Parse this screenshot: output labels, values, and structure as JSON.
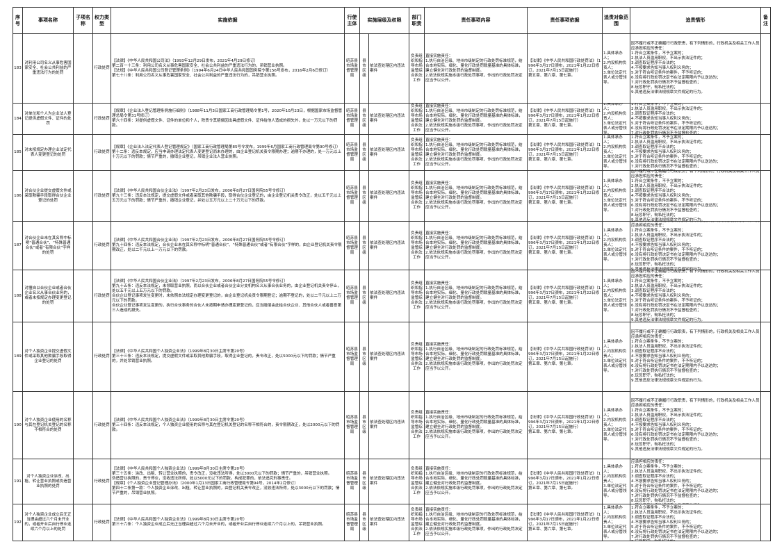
{
  "table": {
    "headers": [
      "序号",
      "事项名称",
      "子项名称",
      "权力类型",
      "实施依据",
      "行使主体",
      "实施层级及权限",
      "部门职责",
      "责任事项内容",
      "责任事项依据",
      "追责对象范围",
      "追责情形",
      "备注"
    ],
    "shared": {
      "subject": "昭苏县市场监督管理局",
      "level": "县市区级",
      "scope": "依法查处辖区内违法案件",
      "duty": "负责组织和指导市场监管综合执法工作",
      "content": "直接实施责任：\n1.执行自治区级、地州市级制定的行政处罚标准规范，结合本地实际，细化、量化行政处罚裁量基准的具体标准，建立健全对行政处罚的监督制度。\n2.依法依规实施本级行政处罚事项，作出的行政处罚决定应当予以公开。",
      "content_basis": "【法律】《中华人民共和国行政处罚法》（1996年3月17日颁布，2021年1月22日修订，2021年7月15日起施行）\n第五章、第六章、第七章。",
      "targets": "1.具体承办人；\n2.内设机构负责人；\n3.单位法定代表人或分管领导。",
      "situations": "因不履行或不正确履行行政职责，有下列情形的，行政机关及相关工作人员应承担相应的责任：\n1.符合立案条件，不予立案的；\n2.执法人员滥用职权，不出示执法证件的；\n3.调查取证程序不合法的；\n4.不按要求告知当事人权利义务的；\n5.对于符合听证条件的案件，不予听证的；\n6.没有将行政处罚决定书在法定期限内予以送达的；\n7.对行政处罚执行情况不予监督检查的；\n8.玩忽职守，徇私枉法的；\n9.其他违反法律法规规章文件规定的行为。"
    },
    "rows": [
      {
        "no": "183",
        "name": "对利用公司名义从事危害国家安全、社会公共利益的严重违法行为的处罚",
        "type": "行政处罚",
        "basis": "【法律】《中华人民共和国公司法》（1993年12月29日发布，2021年4月29日修订）\n第二百一十三条：利用公司名义从事危害国家安全、社会公共利益的严重违法行为的，吊销营业执照。\n【法规】《中华人民共和国公司登记管理条例》（1994年6月24日中华人民共和国国务院令第156号发布，2016年2月6日修订）\n第七十八条：利用公司名义从事危害国家安全、社会公共利益的严重违法行为的，吊销营业执照。"
      },
      {
        "no": "184",
        "name": "对单位和个人为企业法人登记提供虚假文件、证件的处罚",
        "type": "行政处罚",
        "basis": "【规章】《企业法人登记管理条例施行细则》（1988年11月3日国家工商行政管理局令第1号，2020年10月23日，根据国家市场监督管理总局令第31号修订）\n第六十四条：对提供虚假文件、证件的单位和个人，除责令其赔偿因出具虚假文件、证件给他人造成的损失外，处以一万元以下的罚款。"
      },
      {
        "no": "185",
        "name": "对未按规定办理企业法定代表人变更登记的处罚",
        "type": "行政处罚",
        "basis": "【规章】《企业法人法定代表人登记管理规定》（国家工商行政管理局第85号令发布，1999年6月国家工商行政管理局令第90号修订）\n第十二条：违反本规定，应当申请办理法定代表人变更登记而未办理的，由企业登记机关责令限期办理；逾期不办理的，处一万元以上十万元以下的罚款；情节严重的，撤销企业登记，吊销企业法人营业执照。"
      },
      {
        "no": "186",
        "name": "对合伙企业提交虚假文件或采取欺骗手段取得合伙企业登记的处罚",
        "type": "行政处罚",
        "basis": "【法律】《中华人民共和国合伙企业法》（1997年2月23日发布，2006年8月27日国务院55号令修订）\n第九十三条：违反本法规定，提交虚假文件或者采取其他欺骗手段，取得合伙企业登记的，由企业登记机关责令改正，处以五千元以上五万元以下的罚款；情节严重的，撤销企业登记，并处以五万元以上二十万元以下的罚款。"
      },
      {
        "no": "187",
        "name": "对合伙企业未在其名称中标明“普通合伙”、“特殊普通合伙”或者“有限合伙”字样的处罚",
        "type": "行政处罚",
        "basis": "【法律】《中华人民共和国合伙企业法》（1997年2月23日发布，2006年8月27日国务院55号令修订）\n第九十四条：违反本法规定，合伙企业未在其名称中标明“普通合伙”、“特殊普通合伙”或者“有限合伙”字样的，由企业登记机关责令限期改正，处以二千元以上一万元以下的罚款。"
      },
      {
        "no": "188",
        "name": "对擅自以合伙企业或者合伙企业名义从事合伙业务的，或者未按规定办理变更登记的处罚",
        "type": "行政处罚",
        "basis": "【法律】《中华人民共和国合伙企业法》（1997年2月23日发布，2006年8月27日国务院55号令修订）\n第九十五条：违反本法规定，未领取营业执照，而以合伙企业或者合伙企业分支机构名义从事合伙业务的，由企业登记机关责令停止，处以五千元以上五万元以下的罚款。\n合伙企业登记事项发生变更时，未依照本法规定办理变更登记的，由企业登记机关责令限期登记；逾期不登记的，处以二千元以上二万元以下的罚款。\n合伙企业登记事项发生变更的，执行合伙事务的合伙人未按期申请办理变更登记的，应当赔偿由此给合伙企业、其他合伙人或者善意第三人造成的损失。"
      },
      {
        "no": "189",
        "name": "对个人独资企业提交虚假文件或采取其他欺骗手段取得企业登记的处罚",
        "type": "行政处罚",
        "basis": "【法律】《中华人民共和国个人独资企业法》（1999年8月30日主席令第20号）\n第三十三条：违反本法规定，提交虚假文件或采取其他欺骗手段，取得企业登记的，责令改正，处以5000元以下的罚款；情节严重的，并处吊销营业执照。"
      },
      {
        "no": "190",
        "name": "对个人独资企业使用的名称与其在登记机关登记的名称不相符合的处罚",
        "type": "行政处罚",
        "basis": "【法律】《中华人民共和国个人独资企业法》（1999年8月30日主席令第20号）\n第三十四条：违反本法规定，个人独资企业使用的名称与其在登记机关登记的名称不相符合的，责令限期改正，处以2000元以下的罚款。"
      },
      {
        "no": "191",
        "name": "对个人独资企业涂改、出租、转让营业执照或伪造营业执照的处罚",
        "type": "行政处罚",
        "basis": "【法律】《中华人民共和国个人独资企业法》（1999年8月30日主席令第20号）\n第三十五条：涂改、出租、转让营业执照的，责令改正，没收违法所得，处以3000元以下的罚款；情节严重的，吊销营业执照。\n伪造营业执照的，责令停业，没收违法所得，处以5000元以下的罚款。构成犯罪的，依法追究刑事责任。\n【规章】《个人独资企业登记管理办法》（2000年1月13日国家工商行政管理局令第94号，2014年2月修订）\n第四十二条第一款：个人独资企业涂改、出租、转让营业执照的，由登记机关责令改正，没收违法所得，处以3000元以下的罚款；情节严重的，吊销营业执照。"
      },
      {
        "no": "192",
        "name": "对个人独资企业成立后无正当理由超过六个月未开业的，或者开业后自行停业连续六个月以上的处罚",
        "type": "行政处罚",
        "basis": "【法律】《中华人民共和国个人独资企业法》（1999年8月30日主席令第20号）\n第三十六条：个人独资企业成立后无正当理由超过六个月未开业的，或者开业后自行停业连续六个月以上的，吊销营业执照。"
      }
    ]
  }
}
